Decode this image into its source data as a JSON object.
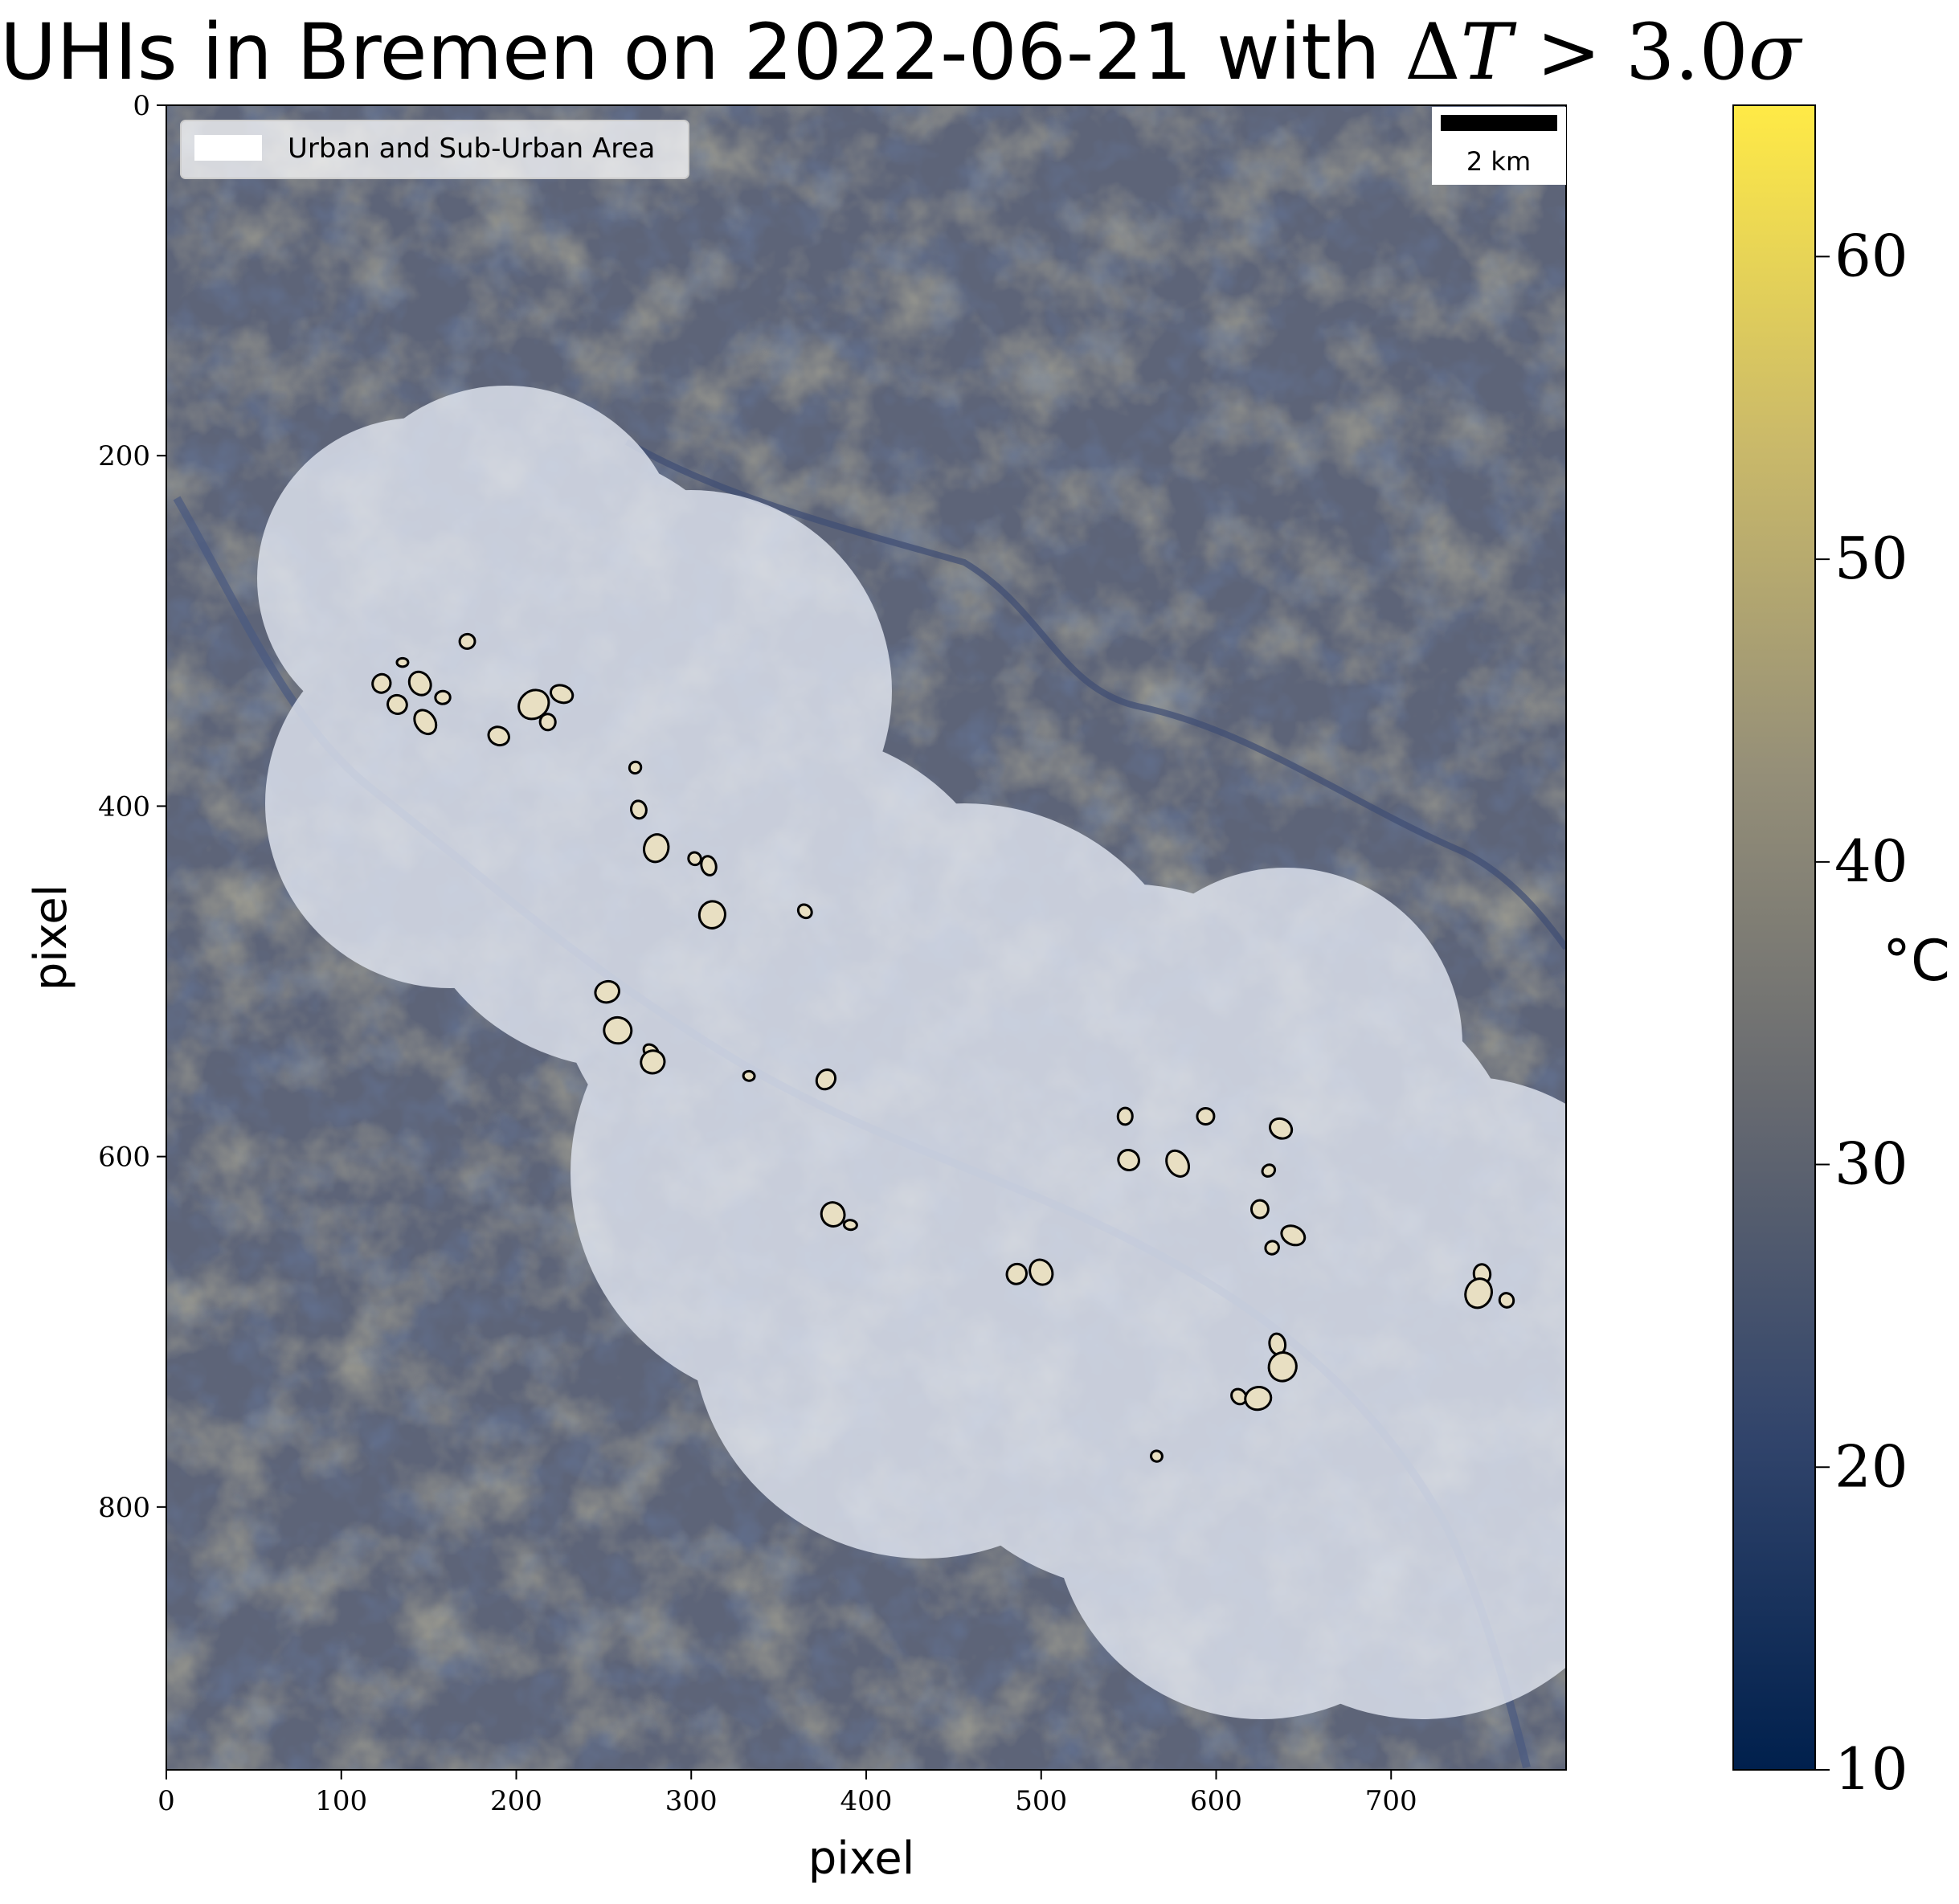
{
  "title": {
    "prefix": "UHIs in Bremen on 2022-06-21 with ",
    "delta": "Δ",
    "var": "T",
    "gt": " > ",
    "value": "3.0",
    "sigma": "σ"
  },
  "axes": {
    "xlabel": "pixel",
    "ylabel": "pixel",
    "x_ticks": [
      0,
      100,
      200,
      300,
      400,
      500,
      600,
      700
    ],
    "y_ticks": [
      0,
      200,
      400,
      600,
      800
    ],
    "x_range": [
      0,
      800
    ],
    "y_range": [
      0,
      950
    ]
  },
  "legend": {
    "label": "Urban and Sub-Urban Area",
    "placement": "top-left",
    "swatch_color": "#ffffff"
  },
  "scale_bar": {
    "label": "2 km",
    "placement": "top-right"
  },
  "colorbar": {
    "label": "°C",
    "ticks": [
      10,
      20,
      30,
      40,
      50,
      60
    ],
    "range": [
      10,
      65
    ],
    "colormap": "cividis",
    "colors": [
      "#00204d",
      "#31446b",
      "#666970",
      "#958f78",
      "#cbba69",
      "#ffea46"
    ]
  },
  "map": {
    "background_color": "#5d6478",
    "urban_overlay_color": "#e3e8f3",
    "uhi_fill_color": "#e8dfc2",
    "uhi_outline_color": "#000000",
    "uhi_centers": [
      [
        135,
        318
      ],
      [
        123,
        330
      ],
      [
        145,
        330
      ],
      [
        158,
        338
      ],
      [
        132,
        342
      ],
      [
        148,
        352
      ],
      [
        172,
        306
      ],
      [
        190,
        360
      ],
      [
        210,
        342
      ],
      [
        218,
        352
      ],
      [
        226,
        336
      ],
      [
        268,
        378
      ],
      [
        270,
        402
      ],
      [
        280,
        424
      ],
      [
        302,
        430
      ],
      [
        310,
        434
      ],
      [
        312,
        462
      ],
      [
        365,
        460
      ],
      [
        252,
        506
      ],
      [
        258,
        528
      ],
      [
        277,
        540
      ],
      [
        278,
        546
      ],
      [
        333,
        554
      ],
      [
        377,
        556
      ],
      [
        381,
        633
      ],
      [
        391,
        639
      ],
      [
        486,
        667
      ],
      [
        500,
        666
      ],
      [
        548,
        577
      ],
      [
        550,
        602
      ],
      [
        578,
        604
      ],
      [
        594,
        577
      ],
      [
        637,
        584
      ],
      [
        630,
        608
      ],
      [
        625,
        630
      ],
      [
        644,
        645
      ],
      [
        632,
        652
      ],
      [
        752,
        667
      ],
      [
        750,
        678
      ],
      [
        766,
        682
      ],
      [
        635,
        707
      ],
      [
        638,
        720
      ],
      [
        613,
        737
      ],
      [
        624,
        738
      ],
      [
        566,
        771
      ]
    ]
  }
}
